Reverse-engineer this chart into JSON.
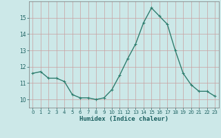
{
  "x": [
    0,
    1,
    2,
    3,
    4,
    5,
    6,
    7,
    8,
    9,
    10,
    11,
    12,
    13,
    14,
    15,
    16,
    17,
    18,
    19,
    20,
    21,
    22,
    23
  ],
  "y": [
    11.6,
    11.7,
    11.3,
    11.3,
    11.1,
    10.3,
    10.1,
    10.1,
    10.0,
    10.1,
    10.6,
    11.5,
    12.5,
    13.4,
    14.7,
    15.6,
    15.1,
    14.6,
    13.0,
    11.6,
    10.9,
    10.5,
    10.5,
    10.2
  ],
  "xlabel": "Humidex (Indice chaleur)",
  "ylim": [
    9.5,
    16.0
  ],
  "xlim": [
    -0.5,
    23.5
  ],
  "yticks": [
    10,
    11,
    12,
    13,
    14,
    15
  ],
  "xticks": [
    0,
    1,
    2,
    3,
    4,
    5,
    6,
    7,
    8,
    9,
    10,
    11,
    12,
    13,
    14,
    15,
    16,
    17,
    18,
    19,
    20,
    21,
    22,
    23
  ],
  "line_color": "#2e7d6e",
  "bg_color": "#cce8e8",
  "grid_color": "#c8a0a0",
  "marker": "+",
  "marker_size": 3,
  "line_width": 1.0
}
